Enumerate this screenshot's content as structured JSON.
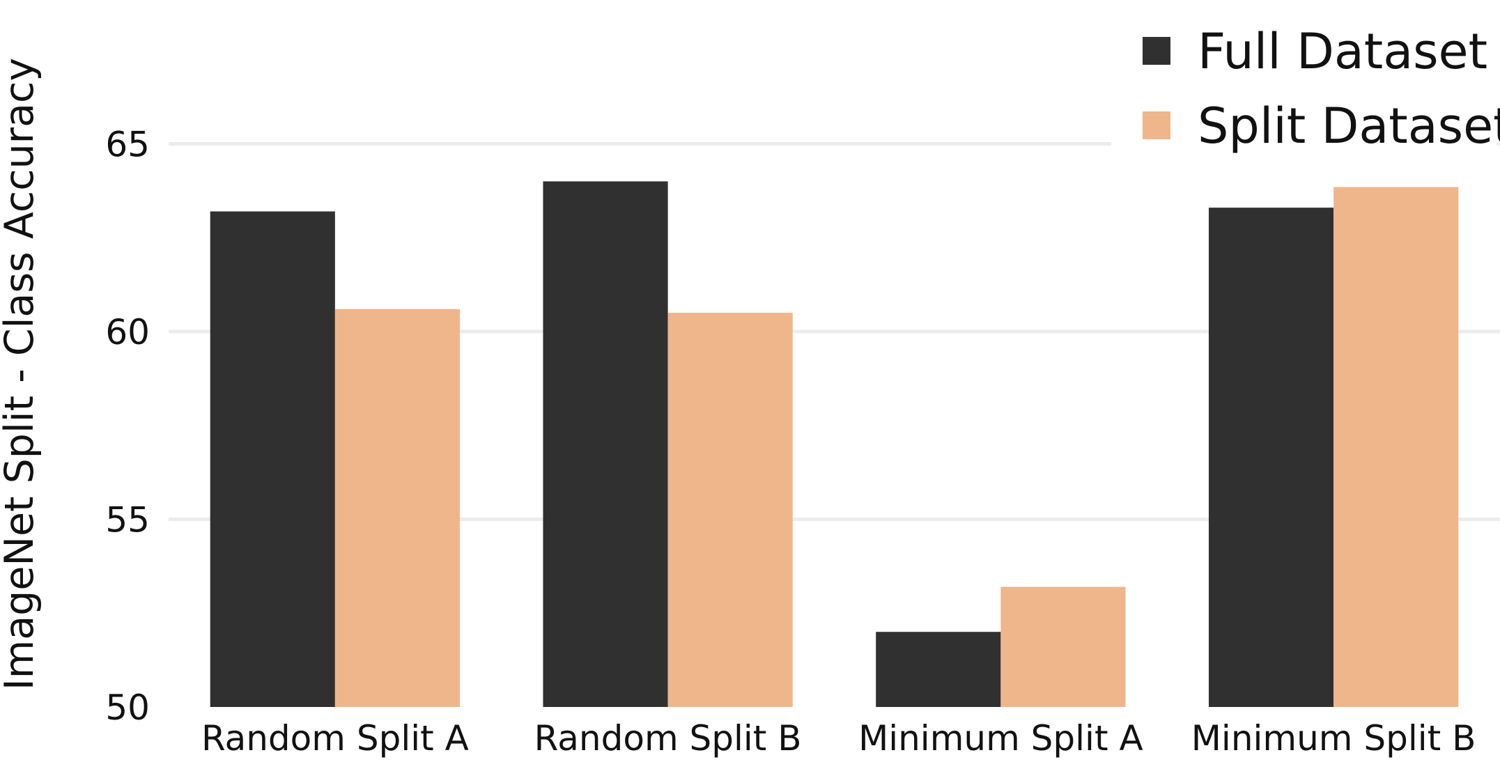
{
  "chart_data": {
    "type": "bar",
    "ylabel": "ImageNet Split - Class Accuracy",
    "xlabel": "",
    "categories": [
      "Random Split A",
      "Random Split B",
      "Minimum Split A",
      "Minimum Split B"
    ],
    "series": [
      {
        "name": "Full Dataset",
        "color": "#303030",
        "values": [
          63.2,
          64.0,
          52.0,
          63.3
        ]
      },
      {
        "name": "Split Dataset",
        "color": "#efb68b",
        "values": [
          60.6,
          60.5,
          53.2,
          63.85
        ]
      }
    ],
    "ylim": [
      50,
      66.5
    ],
    "yticks": [
      50,
      55,
      60,
      65
    ],
    "grid": true,
    "legend_position": "top-right"
  }
}
